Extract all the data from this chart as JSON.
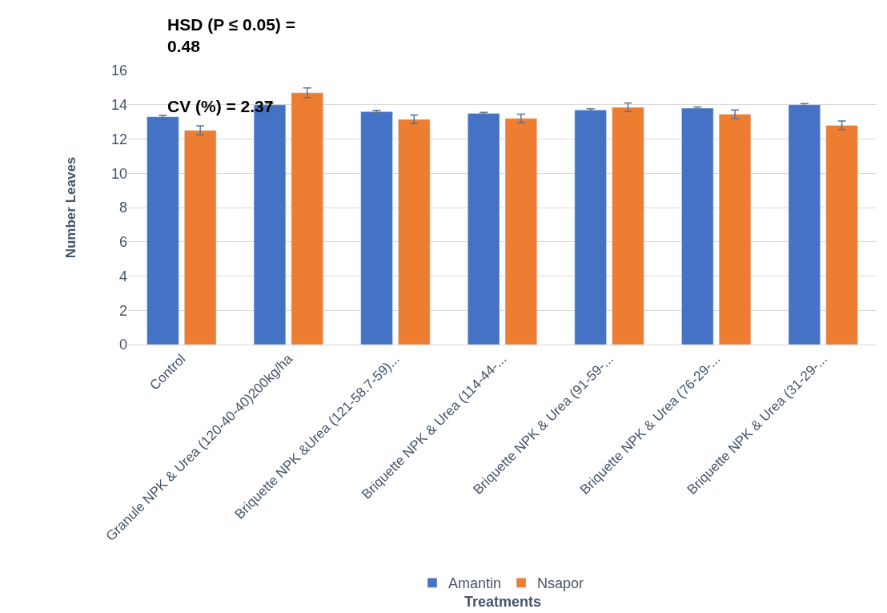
{
  "chart_data": {
    "type": "bar",
    "xlabel": "Treatments",
    "ylabel": "Number Leaves",
    "categories": [
      "Control",
      "Granule NPK & Urea (120-40-40)200kg/ha",
      "Briquette NPK &Urea (121-58.7-59)...",
      "Briquette NPK & Urea (114-44-...",
      "Briquette NPK & Urea (91-59-...",
      "Briquette NPK & Urea (76-29-...",
      "Briquette NPK & Urea (31-29-..."
    ],
    "series": [
      {
        "name": "Amantin",
        "color": "#4472c4",
        "values": [
          13.3,
          14.0,
          13.6,
          13.5,
          13.7,
          13.8,
          14.0
        ],
        "errors": [
          0.08,
          0.08,
          0.07,
          0.05,
          0.07,
          0.07,
          0.07
        ]
      },
      {
        "name": "Nsapor",
        "color": "#ed7d31",
        "values": [
          12.5,
          14.7,
          13.15,
          13.2,
          13.85,
          13.45,
          12.8
        ],
        "errors": [
          0.27,
          0.28,
          0.25,
          0.25,
          0.25,
          0.25,
          0.25
        ]
      }
    ],
    "ylim": [
      0,
      16
    ],
    "yticks": [
      0,
      2,
      4,
      6,
      8,
      10,
      12,
      14,
      16
    ],
    "grid": "y",
    "legend": "bottom",
    "annotations": [
      "HSD (P ≤ 0.05) =\n0.48",
      "CV (%) = 2.37"
    ]
  }
}
